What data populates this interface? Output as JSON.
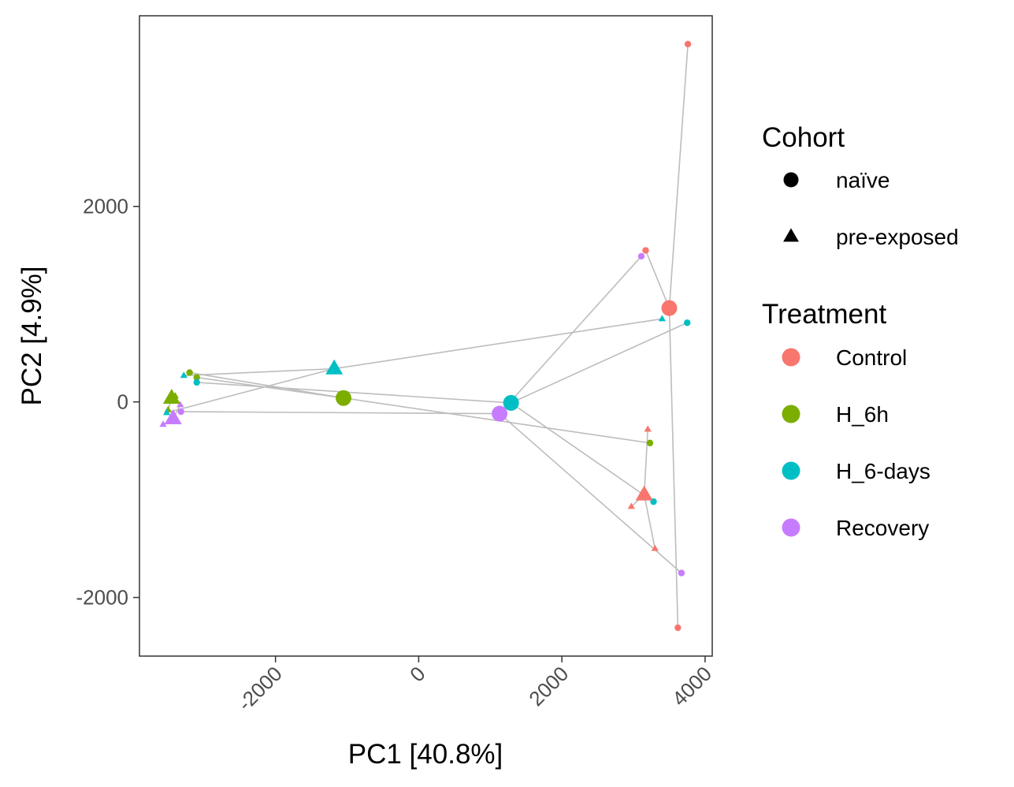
{
  "chart_data": {
    "type": "scatter",
    "title": "",
    "xlabel": "PC1 [40.8%]",
    "ylabel": "PC2 [4.9%]",
    "xlim": [
      -3900,
      4100
    ],
    "ylim": [
      -2600,
      3950
    ],
    "x_ticks": [
      -2000,
      0,
      2000,
      4000
    ],
    "x_tick_labels": [
      "-2000",
      "0",
      "2000",
      "4000"
    ],
    "y_ticks": [
      -2000,
      0,
      2000
    ],
    "y_tick_labels": [
      "-2000",
      "0",
      "2000"
    ],
    "grid": false,
    "legend_position": "right",
    "colors": {
      "Control": "#F8766D",
      "H_6h": "#7CAE00",
      "H_6-days": "#00BFC4",
      "Recovery": "#C77CFF",
      "segment": "#bdbdbd"
    },
    "legend": {
      "cohort_title": "Cohort",
      "cohort_items": [
        {
          "label": "naïve",
          "shape": "circle"
        },
        {
          "label": "pre-exposed",
          "shape": "triangle"
        }
      ],
      "treatment_title": "Treatment",
      "treatment_items": [
        {
          "label": "Control"
        },
        {
          "label": "H_6h"
        },
        {
          "label": "H_6-days"
        },
        {
          "label": "Recovery"
        }
      ]
    },
    "centroids": [
      {
        "treatment": "Control",
        "cohort": "naïve",
        "x": 3500,
        "y": 960
      },
      {
        "treatment": "Control",
        "cohort": "pre-exposed",
        "x": 3150,
        "y": -950
      },
      {
        "treatment": "H_6h",
        "cohort": "naïve",
        "x": -1050,
        "y": 40
      },
      {
        "treatment": "H_6h",
        "cohort": "pre-exposed",
        "x": -3450,
        "y": 40
      },
      {
        "treatment": "H_6-days",
        "cohort": "naïve",
        "x": 1290,
        "y": -10
      },
      {
        "treatment": "H_6-days",
        "cohort": "pre-exposed",
        "x": -1180,
        "y": 340
      },
      {
        "treatment": "Recovery",
        "cohort": "naïve",
        "x": 1130,
        "y": -120
      },
      {
        "treatment": "Recovery",
        "cohort": "pre-exposed",
        "x": -3430,
        "y": -170
      }
    ],
    "points": [
      {
        "treatment": "Control",
        "cohort": "naïve",
        "x": 3760,
        "y": 3660
      },
      {
        "treatment": "Control",
        "cohort": "naïve",
        "x": 3170,
        "y": 1550
      },
      {
        "treatment": "Control",
        "cohort": "naïve",
        "x": 3620,
        "y": -2310
      },
      {
        "treatment": "Control",
        "cohort": "pre-exposed",
        "x": 3200,
        "y": -280
      },
      {
        "treatment": "Control",
        "cohort": "pre-exposed",
        "x": 2970,
        "y": -1070
      },
      {
        "treatment": "Control",
        "cohort": "pre-exposed",
        "x": 3300,
        "y": -1500
      },
      {
        "treatment": "H_6h",
        "cohort": "naïve",
        "x": -3200,
        "y": 300
      },
      {
        "treatment": "H_6h",
        "cohort": "naïve",
        "x": -3100,
        "y": 250
      },
      {
        "treatment": "H_6h",
        "cohort": "naïve",
        "x": 3230,
        "y": -420
      },
      {
        "treatment": "H_6h",
        "cohort": "pre-exposed",
        "x": -3450,
        "y": 20
      },
      {
        "treatment": "H_6h",
        "cohort": "pre-exposed",
        "x": -3500,
        "y": -80
      },
      {
        "treatment": "H_6h",
        "cohort": "pre-exposed",
        "x": -3400,
        "y": 60
      },
      {
        "treatment": "H_6-days",
        "cohort": "naïve",
        "x": 3750,
        "y": 810
      },
      {
        "treatment": "H_6-days",
        "cohort": "naïve",
        "x": -3100,
        "y": 200
      },
      {
        "treatment": "H_6-days",
        "cohort": "naïve",
        "x": 3280,
        "y": -1020
      },
      {
        "treatment": "H_6-days",
        "cohort": "pre-exposed",
        "x": 3400,
        "y": 850
      },
      {
        "treatment": "H_6-days",
        "cohort": "pre-exposed",
        "x": -3280,
        "y": 270
      },
      {
        "treatment": "H_6-days",
        "cohort": "pre-exposed",
        "x": -3520,
        "y": -110
      },
      {
        "treatment": "Recovery",
        "cohort": "naïve",
        "x": 3110,
        "y": 1490
      },
      {
        "treatment": "Recovery",
        "cohort": "naïve",
        "x": -3320,
        "y": -100
      },
      {
        "treatment": "Recovery",
        "cohort": "naïve",
        "x": 3670,
        "y": -1750
      },
      {
        "treatment": "Recovery",
        "cohort": "pre-exposed",
        "x": -3570,
        "y": -230
      },
      {
        "treatment": "Recovery",
        "cohort": "pre-exposed",
        "x": -3470,
        "y": -190
      },
      {
        "treatment": "Recovery",
        "cohort": "pre-exposed",
        "x": -3330,
        "y": -30
      }
    ]
  }
}
